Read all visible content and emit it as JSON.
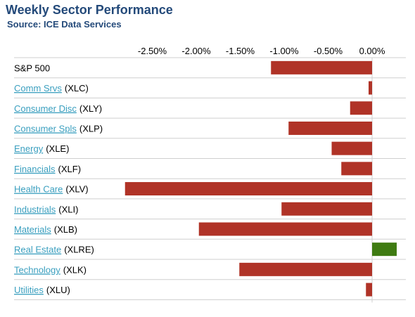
{
  "title": "Weekly Sector Performance",
  "source": "Source: ICE Data Services",
  "colors": {
    "negative": "#b03327",
    "positive": "#3f7b12",
    "link": "#3a9fbf",
    "title": "#244a7a",
    "grid": "#cfcfcf"
  },
  "chart_data": {
    "type": "bar",
    "orientation": "horizontal",
    "xlim": [
      -2.8,
      0.35
    ],
    "tick_values": [
      -2.5,
      -2.0,
      -1.5,
      -1.0,
      -0.5,
      0.0
    ],
    "tick_labels": [
      "-2.50%",
      "-2.00%",
      "-1.50%",
      "-1.00%",
      "-0.50%",
      "0.00%"
    ],
    "rows": [
      {
        "name": "S&P 500",
        "ticker": "",
        "link": false,
        "value": -1.15
      },
      {
        "name": "Comm Srvs",
        "ticker": "(XLC)",
        "link": true,
        "value": -0.04
      },
      {
        "name": "Consumer Disc",
        "ticker": "(XLY)",
        "link": true,
        "value": -0.25
      },
      {
        "name": "Consumer Spls",
        "ticker": "(XLP)",
        "link": true,
        "value": -0.95
      },
      {
        "name": "Energy",
        "ticker": "(XLE)",
        "link": true,
        "value": -0.46
      },
      {
        "name": "Financials",
        "ticker": "(XLF)",
        "link": true,
        "value": -0.35
      },
      {
        "name": "Health Care",
        "ticker": "(XLV)",
        "link": true,
        "value": -2.81
      },
      {
        "name": "Industrials",
        "ticker": "(XLI)",
        "link": true,
        "value": -1.03
      },
      {
        "name": "Materials",
        "ticker": "(XLB)",
        "link": true,
        "value": -1.97
      },
      {
        "name": "Real Estate",
        "ticker": "(XLRE)",
        "link": true,
        "value": 0.28
      },
      {
        "name": "Technology",
        "ticker": "(XLK)",
        "link": true,
        "value": -1.51
      },
      {
        "name": "Utilities",
        "ticker": "(XLU)",
        "link": true,
        "value": -0.07
      }
    ]
  }
}
